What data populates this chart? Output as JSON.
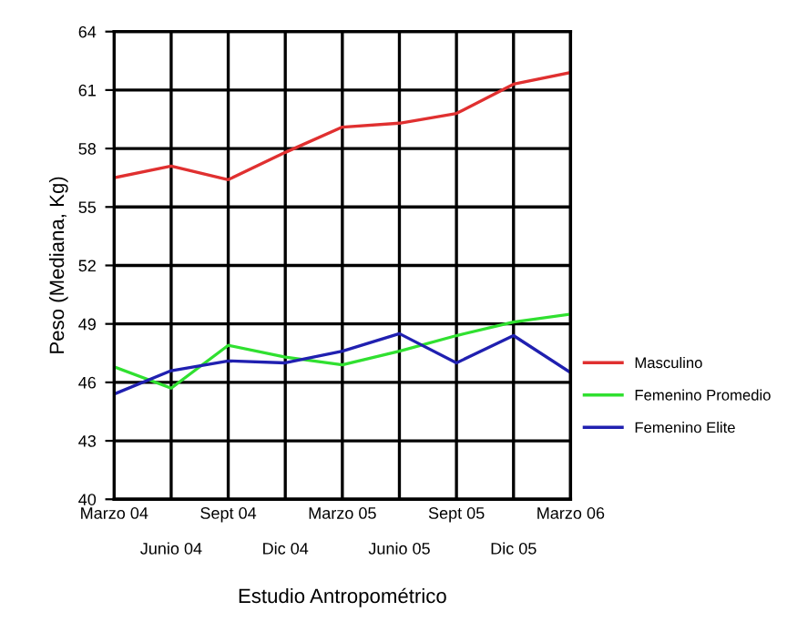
{
  "chart_data": {
    "type": "line",
    "xlabel": "Estudio Antropométrico",
    "ylabel": "Peso (Mediana, Kg)",
    "categories": [
      "Marzo 04",
      "Junio 04",
      "Sept 04",
      "Dic 04",
      "Marzo 05",
      "Junio 05",
      "Sept 05",
      "Dic 05",
      "Marzo 06"
    ],
    "series": [
      {
        "name": "Masculino",
        "color": "#e03030",
        "values": [
          56.5,
          57.1,
          56.4,
          57.8,
          59.1,
          59.3,
          59.8,
          61.3,
          61.9
        ]
      },
      {
        "name": "Femenino Promedio",
        "color": "#30e030",
        "values": [
          46.8,
          45.7,
          47.9,
          47.3,
          46.9,
          47.6,
          48.4,
          49.1,
          49.5
        ]
      },
      {
        "name": "Femenino Elite",
        "color": "#2020b0",
        "values": [
          45.4,
          46.6,
          47.1,
          47.0,
          47.6,
          48.5,
          47.0,
          48.4,
          46.5
        ]
      }
    ],
    "ylim": [
      40,
      64
    ],
    "yticks": [
      40,
      43,
      46,
      49,
      52,
      55,
      58,
      61,
      64
    ],
    "grid": true,
    "legend": "right",
    "marker": "none",
    "line_style": "solid"
  }
}
